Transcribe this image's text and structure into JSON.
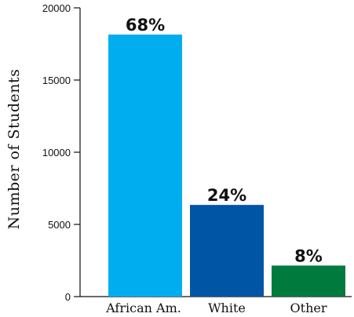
{
  "chart_data": {
    "type": "bar",
    "categories": [
      "African Am.",
      "White",
      "Other"
    ],
    "values": [
      18150,
      6350,
      2150
    ],
    "data_labels": [
      "68%",
      "24%",
      "8%"
    ],
    "colors": [
      "#00aeef",
      "#0055a4",
      "#007a3d"
    ],
    "title": "",
    "xlabel": "",
    "ylabel": "Number of Students",
    "ylim": [
      0,
      20000
    ],
    "yticks": [
      0,
      5000,
      10000,
      15000,
      20000
    ],
    "grid": false,
    "legend": "none"
  }
}
